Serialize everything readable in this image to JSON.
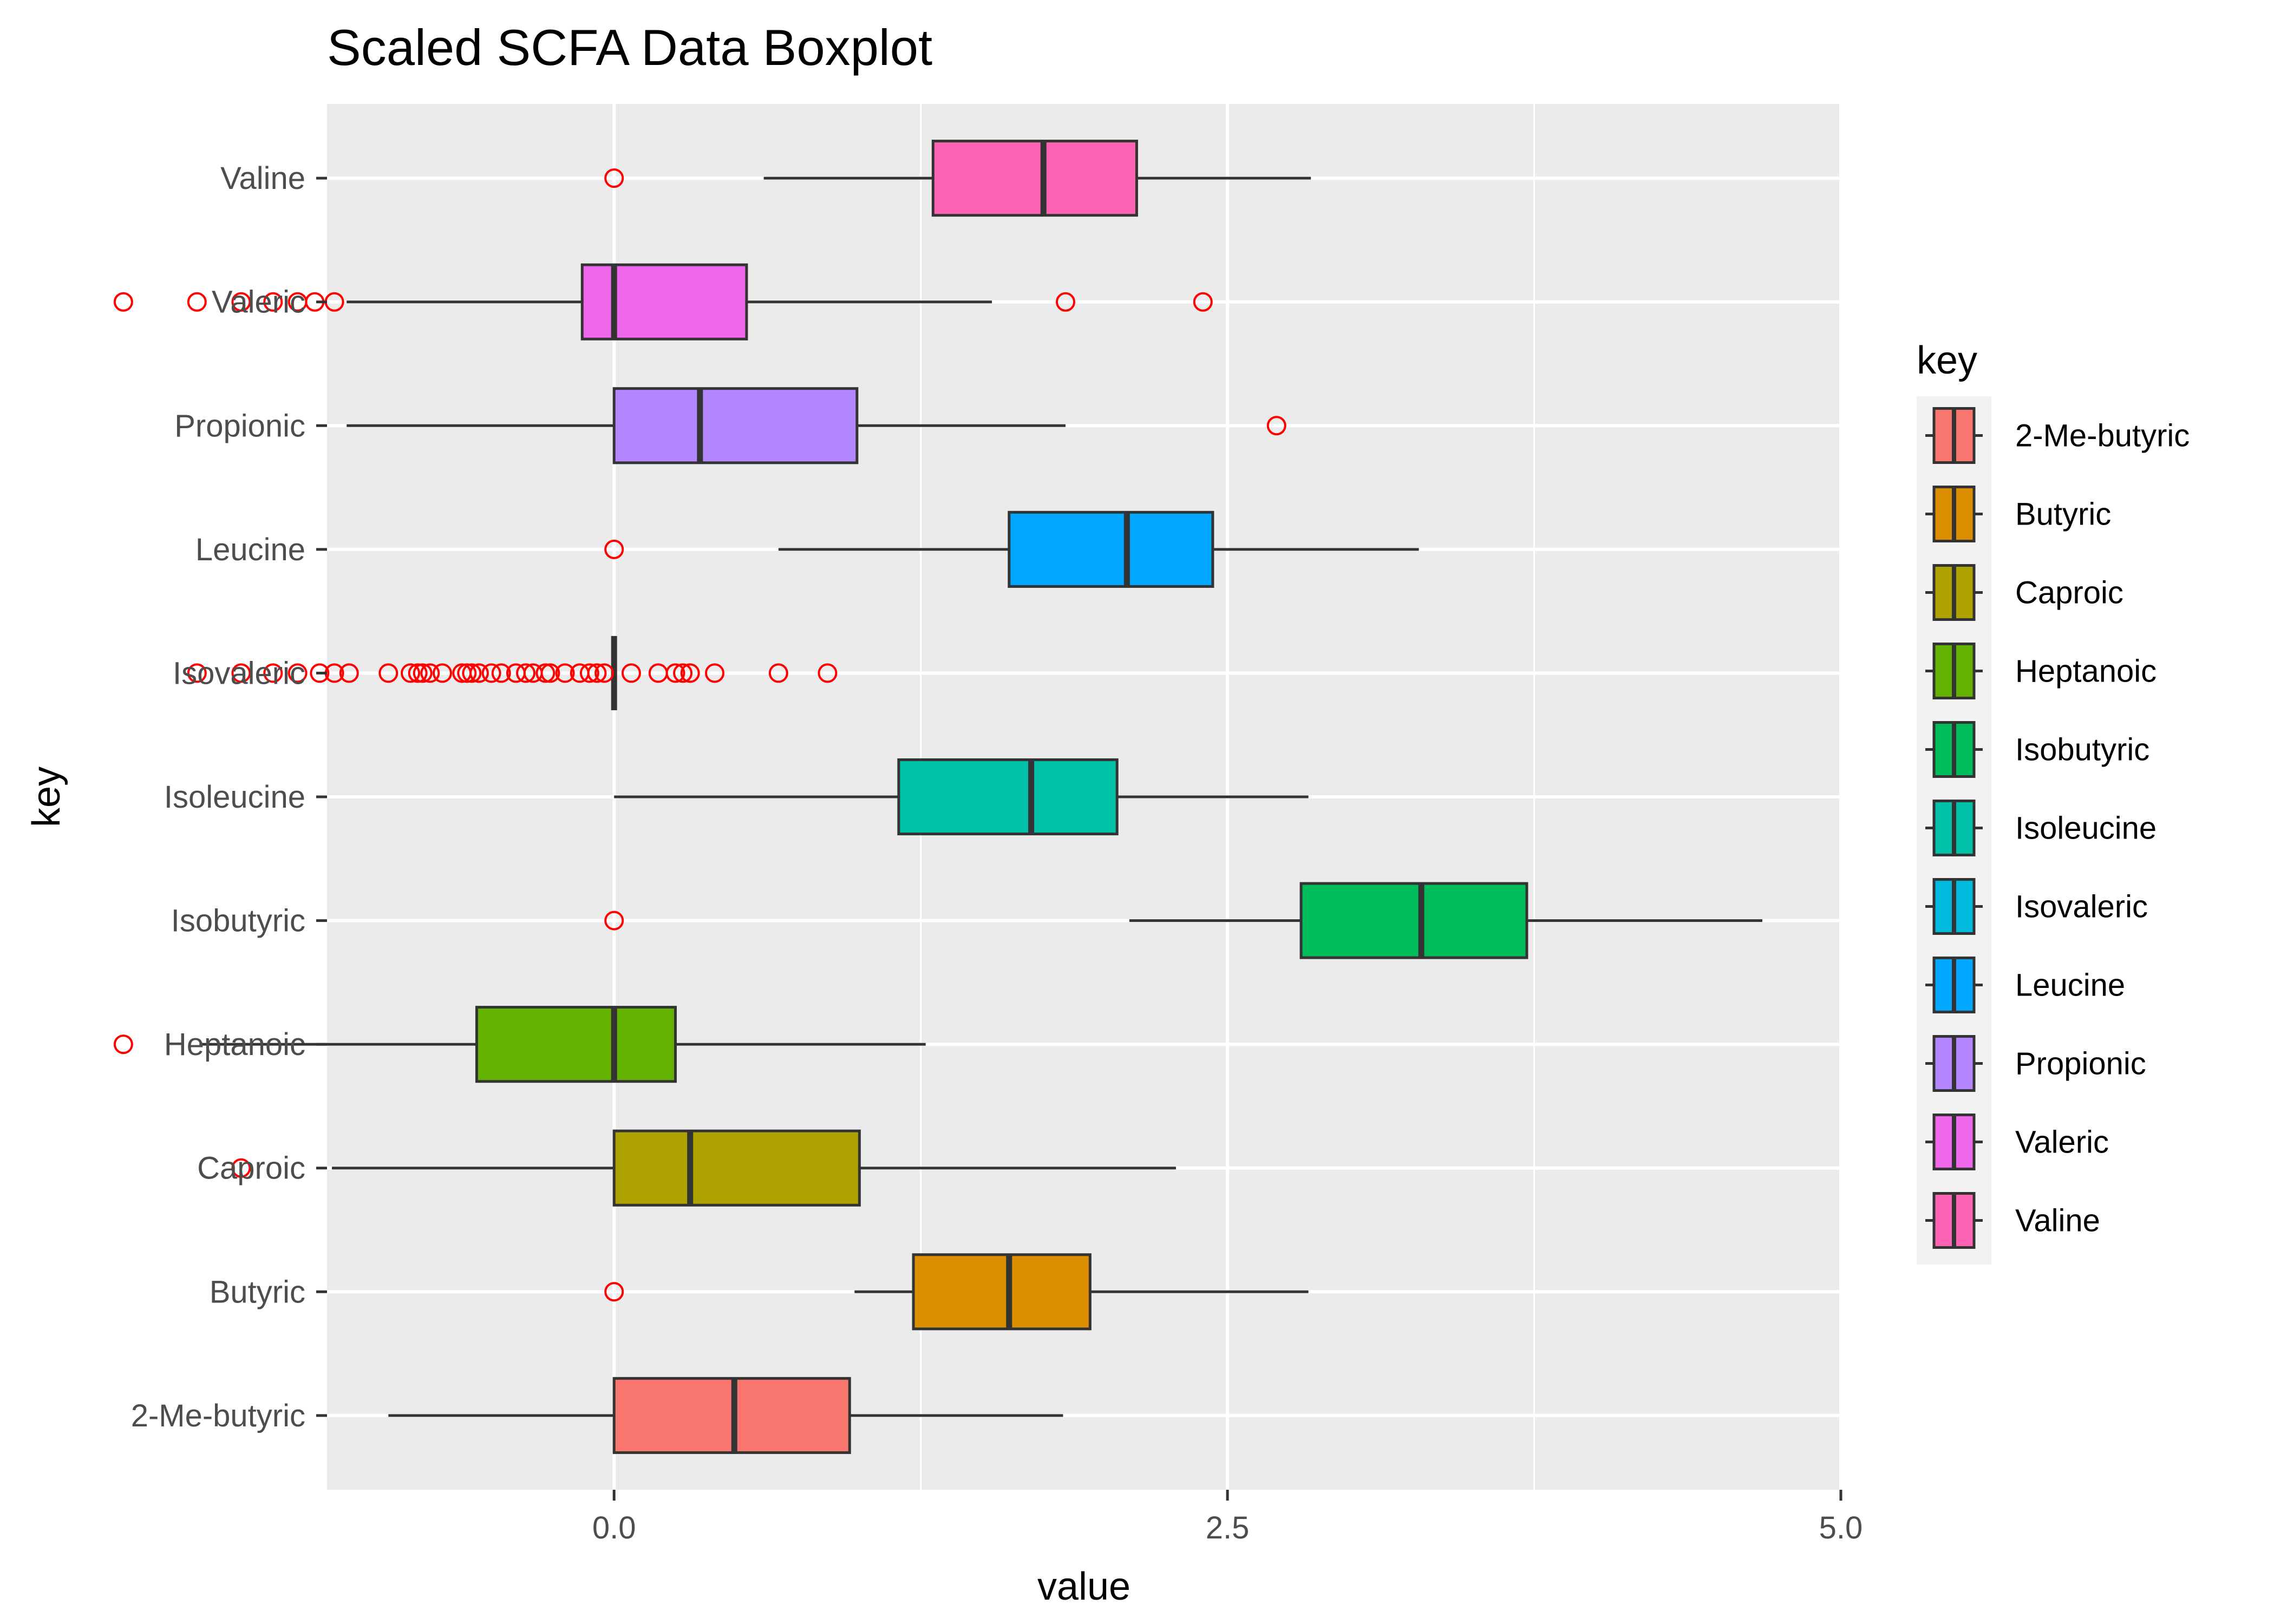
{
  "chart_data": {
    "type": "boxplot",
    "orientation": "horizontal",
    "title": "Scaled SCFA Data Boxplot",
    "xlabel": "value",
    "ylabel": "key",
    "xlim": [
      -1.17,
      5.0
    ],
    "x_ticks": [
      0.0,
      2.5,
      5.0
    ],
    "x_tick_labels": [
      "0.0",
      "2.5",
      "5.0"
    ],
    "grid": true,
    "legend": {
      "title": "key",
      "position": "right"
    },
    "outlier_color": "#ff0000",
    "series": [
      {
        "name": "2-Me-butyric",
        "color": "#F8766D",
        "whisker_low": -0.92,
        "q1": 0.0,
        "median": 0.49,
        "q3": 0.96,
        "whisker_high": 1.83,
        "outliers": []
      },
      {
        "name": "Butyric",
        "color": "#DB8E00",
        "whisker_low": 0.98,
        "q1": 1.22,
        "median": 1.61,
        "q3": 1.94,
        "whisker_high": 2.83,
        "outliers": [
          0.0
        ]
      },
      {
        "name": "Caproic",
        "color": "#AEA200",
        "whisker_low": -1.15,
        "q1": 0.0,
        "median": 0.31,
        "q3": 1.0,
        "whisker_high": 2.29,
        "outliers": [
          -1.52
        ]
      },
      {
        "name": "Heptanoic",
        "color": "#64B200",
        "whisker_low": -1.69,
        "q1": -0.56,
        "median": 0.0,
        "q3": 0.25,
        "whisker_high": 1.27,
        "outliers": [
          -2.0
        ]
      },
      {
        "name": "Isobutyric",
        "color": "#00BD5C",
        "whisker_low": 2.1,
        "q1": 2.8,
        "median": 3.29,
        "q3": 3.72,
        "whisker_high": 4.68,
        "outliers": [
          0.0
        ]
      },
      {
        "name": "Isoleucine",
        "color": "#00C1A7",
        "whisker_low": 0.0,
        "q1": 1.16,
        "median": 1.7,
        "q3": 2.05,
        "whisker_high": 2.83,
        "outliers": []
      },
      {
        "name": "Isovaleric",
        "color": "#00BADE",
        "whisker_low": 0.0,
        "q1": 0.0,
        "median": 0.0,
        "q3": 0.0,
        "whisker_high": 0.0,
        "outliers": [
          -1.7,
          -1.52,
          -1.39,
          -1.29,
          -1.2,
          -1.14,
          -1.08,
          -0.92,
          -0.83,
          -0.8,
          -0.78,
          -0.75,
          -0.7,
          -0.62,
          -0.6,
          -0.58,
          -0.55,
          -0.5,
          -0.46,
          -0.4,
          -0.36,
          -0.33,
          -0.28,
          -0.26,
          -0.2,
          -0.14,
          -0.1,
          -0.07,
          -0.04,
          0.07,
          0.18,
          0.25,
          0.28,
          0.31,
          0.41,
          0.67,
          0.87
        ]
      },
      {
        "name": "Leucine",
        "color": "#00A6FF",
        "whisker_low": 0.67,
        "q1": 1.61,
        "median": 2.09,
        "q3": 2.44,
        "whisker_high": 3.28,
        "outliers": [
          0.0
        ]
      },
      {
        "name": "Propionic",
        "color": "#B385FF",
        "whisker_low": -1.09,
        "q1": 0.0,
        "median": 0.35,
        "q3": 0.99,
        "whisker_high": 1.84,
        "outliers": [
          2.7
        ]
      },
      {
        "name": "Valeric",
        "color": "#EF67EB",
        "whisker_low": -1.09,
        "q1": -0.13,
        "median": 0.0,
        "q3": 0.54,
        "whisker_high": 1.54,
        "outliers": [
          -2.0,
          -1.7,
          -1.52,
          -1.39,
          -1.29,
          -1.22,
          -1.14,
          1.84,
          2.4
        ]
      },
      {
        "name": "Valine",
        "color": "#FF63B6",
        "whisker_low": 0.61,
        "q1": 1.3,
        "median": 1.75,
        "q3": 2.13,
        "whisker_high": 2.84,
        "outliers": [
          0.0
        ]
      }
    ]
  }
}
